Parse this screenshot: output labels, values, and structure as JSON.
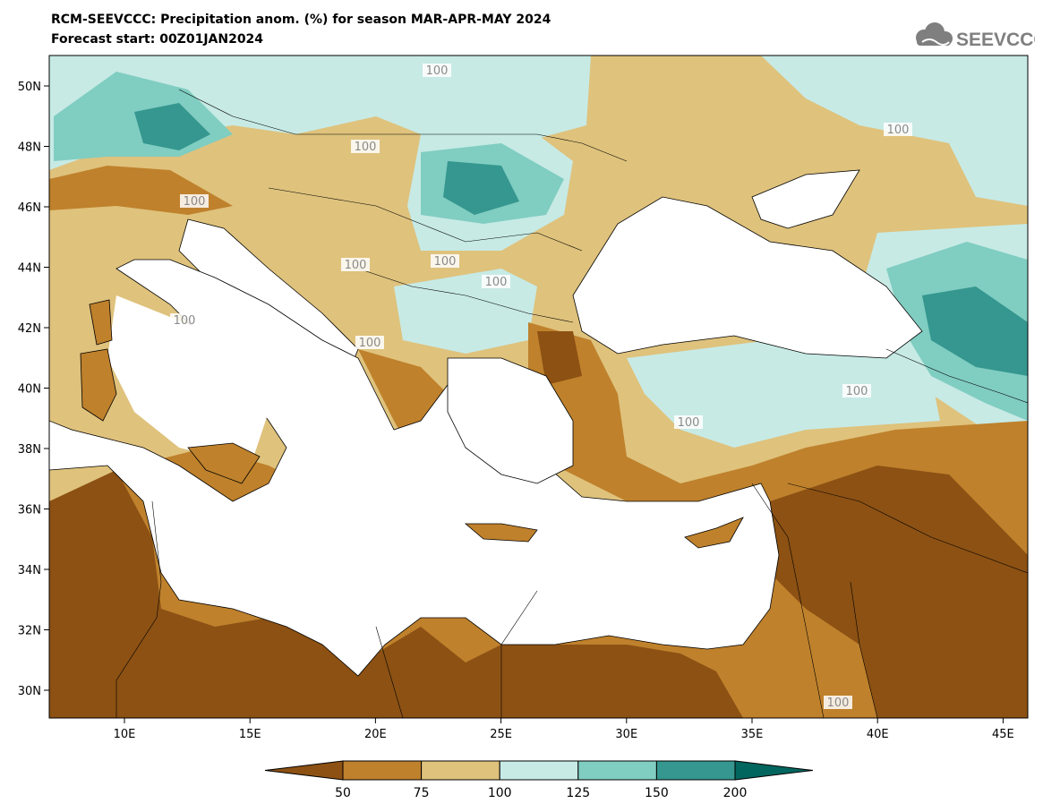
{
  "header": {
    "title_line1": "RCM-SEEVCCC: Precipitation anom. (%) for season MAR-APR-MAY 2024",
    "title_line2": "Forecast start: 00Z01JAN2024",
    "logo_text": "SEEVCCC"
  },
  "map": {
    "lat_labels": [
      "50N",
      "48N",
      "46N",
      "44N",
      "42N",
      "40N",
      "38N",
      "36N",
      "34N",
      "32N",
      "30N"
    ],
    "lon_labels": [
      "10E",
      "15E",
      "20E",
      "25E",
      "30E",
      "35E",
      "40E",
      "45E"
    ],
    "contour_label": "100"
  },
  "legend": {
    "ticks": [
      "50",
      "75",
      "100",
      "125",
      "150",
      "200"
    ],
    "colors": [
      "#8c5113",
      "#bf812c",
      "#dfc27c",
      "#c7eae5",
      "#80cdc1",
      "#35978f",
      "#01665e"
    ]
  }
}
